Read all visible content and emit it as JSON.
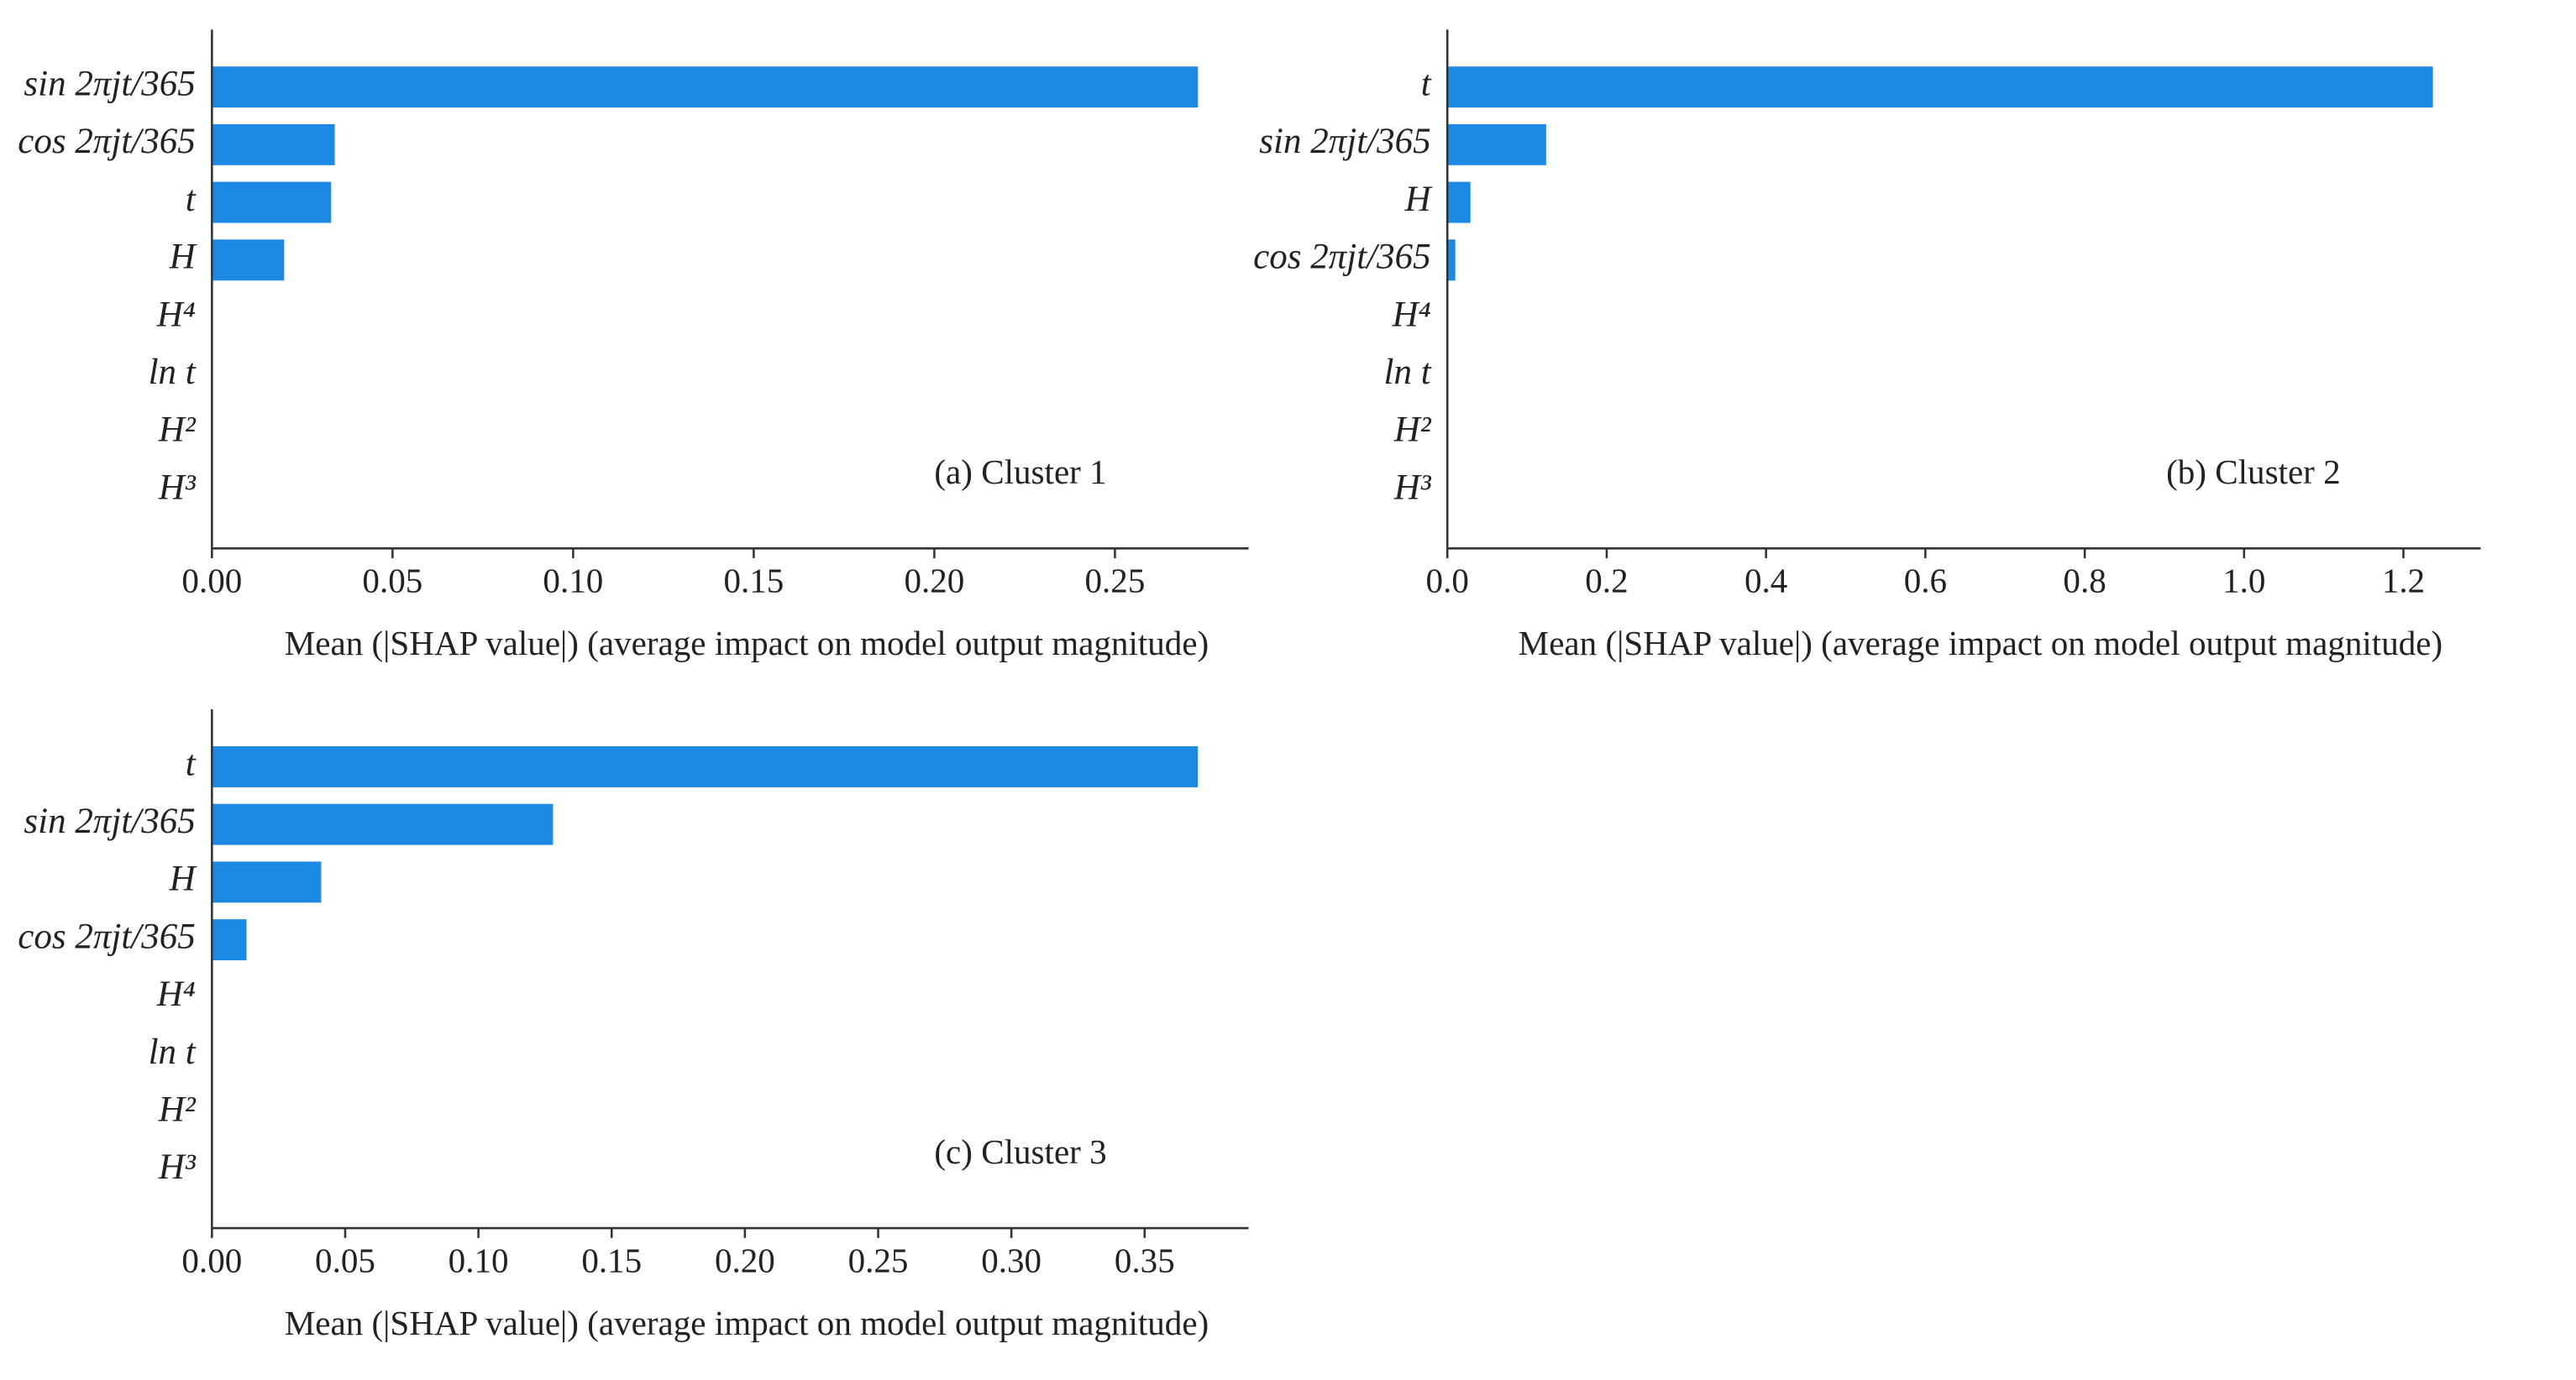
{
  "chart_data": [
    {
      "type": "bar",
      "orientation": "horizontal",
      "annotation": "(a) Cluster 1",
      "xlabel": "Mean (|SHAP value|) (average impact on model output magnitude)",
      "categories": [
        "sin 2πjt/365",
        "cos 2πjt/365",
        "t",
        "H",
        "H⁴",
        "ln t",
        "H²",
        "H³"
      ],
      "values": [
        0.273,
        0.034,
        0.033,
        0.02,
        0,
        0,
        0,
        0
      ],
      "color": "#1e88e5",
      "xlim": [
        0,
        0.287
      ],
      "xticks": [
        {
          "value": 0,
          "label": "0.00"
        },
        0.05,
        {
          "value": 0.1,
          "label": "0.10"
        },
        0.15,
        {
          "value": 0.2,
          "label": "0.20"
        },
        0.25
      ]
    },
    {
      "type": "bar",
      "orientation": "horizontal",
      "annotation": "(b) Cluster 2",
      "xlabel": "Mean (|SHAP value|) (average impact on model output magnitude)",
      "categories": [
        "t",
        "sin 2πjt/365",
        "H",
        "cos 2πjt/365",
        "H⁴",
        "ln t",
        "H²",
        "H³"
      ],
      "values": [
        1.237,
        0.124,
        0.029,
        0.01,
        0,
        0,
        0,
        0
      ],
      "color": "#1e88e5",
      "xlim": [
        0,
        1.297
      ],
      "xticks": [
        {
          "value": 0,
          "label": "0.0"
        },
        0.2,
        0.4,
        0.6,
        0.8,
        {
          "value": 1,
          "label": "1.0"
        },
        1.2
      ]
    },
    {
      "type": "bar",
      "orientation": "horizontal",
      "annotation": "(c) Cluster 3",
      "xlabel": "Mean (|SHAP value|) (average impact on model output magnitude)",
      "categories": [
        "t",
        "sin 2πjt/365",
        "H",
        "cos 2πjt/365",
        "H⁴",
        "ln t",
        "H²",
        "H³"
      ],
      "values": [
        0.37,
        0.128,
        0.041,
        0.013,
        0,
        0,
        0,
        0
      ],
      "color": "#1e88e5",
      "xlim": [
        0,
        0.389
      ],
      "xticks": [
        {
          "value": 0,
          "label": "0.00"
        },
        0.05,
        {
          "value": 0.1,
          "label": "0.10"
        },
        0.15,
        {
          "value": 0.2,
          "label": "0.20"
        },
        0.25,
        {
          "value": 0.3,
          "label": "0.30"
        },
        0.35
      ]
    }
  ]
}
